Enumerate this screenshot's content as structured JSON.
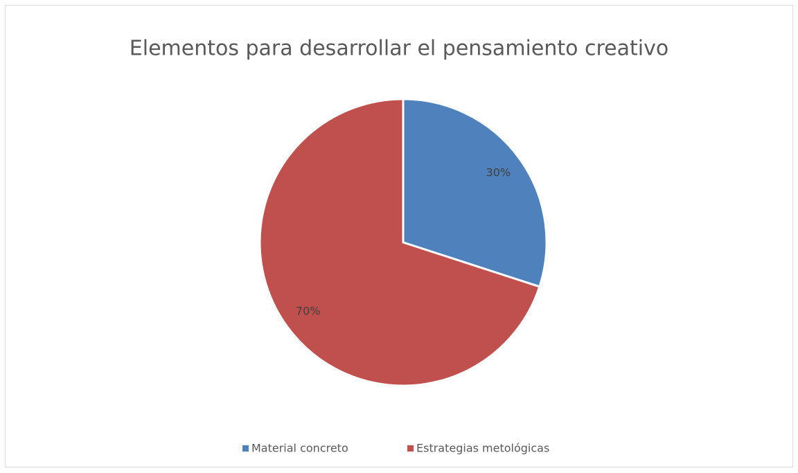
{
  "chart_data": {
    "type": "pie",
    "title": "Elementos para desarrollar el pensamiento creativo",
    "categories": [
      "Material concreto",
      "Estrategias metológicas"
    ],
    "values": [
      30,
      70
    ],
    "value_labels": [
      "30%",
      "70%"
    ],
    "colors": [
      "#4f81bd",
      "#c0504d"
    ],
    "legend": "bottom"
  }
}
